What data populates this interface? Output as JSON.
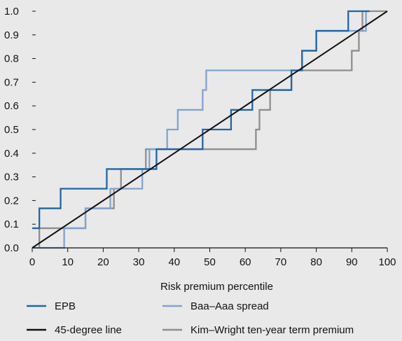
{
  "chart_data": {
    "type": "line",
    "title": "",
    "xlabel": "Risk premium percentile",
    "ylabel": "",
    "xlim": [
      0,
      100
    ],
    "ylim": [
      0,
      1
    ],
    "x_ticks": [
      "0",
      "10",
      "20",
      "30",
      "40",
      "50",
      "60",
      "70",
      "80",
      "90",
      "100"
    ],
    "y_ticks": [
      "0.0",
      "0.1",
      "0.2",
      "0.3",
      "0.4",
      "0.5",
      "0.6",
      "0.7",
      "0.8",
      "0.9",
      "1.0"
    ],
    "grid": false,
    "legend_placement": "bottom",
    "series": [
      {
        "name": "EPB",
        "color": "#1f66a8",
        "points": [
          [
            0,
            0.083
          ],
          [
            2,
            0.083
          ],
          [
            2,
            0.167
          ],
          [
            8,
            0.167
          ],
          [
            8,
            0.25
          ],
          [
            21,
            0.25
          ],
          [
            21,
            0.333
          ],
          [
            26,
            0.333
          ],
          [
            26,
            0.333
          ],
          [
            34,
            0.333
          ],
          [
            34,
            0.333
          ],
          [
            35,
            0.333
          ],
          [
            35,
            0.417
          ],
          [
            48,
            0.417
          ],
          [
            48,
            0.5
          ],
          [
            52,
            0.5
          ],
          [
            52,
            0.5
          ],
          [
            56,
            0.5
          ],
          [
            56,
            0.583
          ],
          [
            62,
            0.583
          ],
          [
            62,
            0.667
          ],
          [
            67,
            0.667
          ],
          [
            67,
            0.667
          ],
          [
            73,
            0.667
          ],
          [
            73,
            0.75
          ],
          [
            76,
            0.75
          ],
          [
            76,
            0.833
          ],
          [
            80,
            0.833
          ],
          [
            80,
            0.917
          ],
          [
            89,
            0.917
          ],
          [
            89,
            1.0
          ],
          [
            95,
            1.0
          ]
        ]
      },
      {
        "name": "Baa–Aaa spread",
        "color": "#7fa4cf",
        "points": [
          [
            0,
            0.0
          ],
          [
            9,
            0.0
          ],
          [
            9,
            0.083
          ],
          [
            15,
            0.083
          ],
          [
            15,
            0.167
          ],
          [
            22,
            0.167
          ],
          [
            22,
            0.25
          ],
          [
            31,
            0.25
          ],
          [
            31,
            0.333
          ],
          [
            33,
            0.333
          ],
          [
            33,
            0.417
          ],
          [
            38,
            0.417
          ],
          [
            38,
            0.5
          ],
          [
            41,
            0.5
          ],
          [
            41,
            0.583
          ],
          [
            48,
            0.583
          ],
          [
            48,
            0.667
          ],
          [
            49,
            0.667
          ],
          [
            49,
            0.75
          ],
          [
            73,
            0.75
          ],
          [
            73,
            0.75
          ],
          [
            76,
            0.75
          ],
          [
            76,
            0.833
          ],
          [
            80,
            0.833
          ],
          [
            80,
            0.917
          ],
          [
            87,
            0.917
          ],
          [
            87,
            0.917
          ],
          [
            94,
            0.917
          ],
          [
            94,
            1.0
          ],
          [
            95,
            1.0
          ]
        ]
      },
      {
        "name": "45-degree line",
        "color": "#111111",
        "points": [
          [
            0,
            0.0
          ],
          [
            100,
            1.0
          ]
        ]
      },
      {
        "name": "Kim–Wright ten-year term premium",
        "color": "#8e8e8e",
        "points": [
          [
            2,
            0.0
          ],
          [
            2,
            0.083
          ],
          [
            15,
            0.083
          ],
          [
            15,
            0.167
          ],
          [
            23,
            0.167
          ],
          [
            23,
            0.25
          ],
          [
            25,
            0.25
          ],
          [
            25,
            0.333
          ],
          [
            32,
            0.333
          ],
          [
            32,
            0.417
          ],
          [
            63,
            0.417
          ],
          [
            63,
            0.5
          ],
          [
            64,
            0.5
          ],
          [
            64,
            0.583
          ],
          [
            67,
            0.583
          ],
          [
            67,
            0.667
          ],
          [
            73,
            0.667
          ],
          [
            73,
            0.75
          ],
          [
            90,
            0.75
          ],
          [
            90,
            0.833
          ],
          [
            92,
            0.833
          ],
          [
            92,
            0.917
          ],
          [
            93,
            0.917
          ],
          [
            93,
            1.0
          ],
          [
            100,
            1.0
          ]
        ]
      }
    ]
  }
}
